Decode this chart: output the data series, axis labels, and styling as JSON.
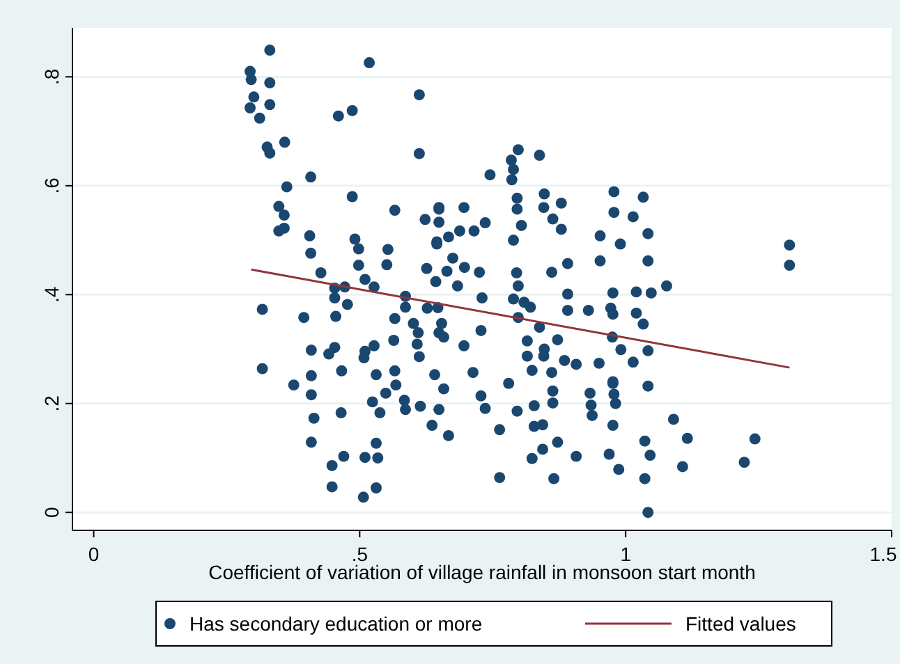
{
  "chart_data": {
    "type": "scatter",
    "xlabel": "Coefficient of variation of village rainfall in monsoon start month",
    "xlim": [
      -0.04,
      1.5
    ],
    "ylim": [
      -0.033,
      0.89
    ],
    "xticks": [
      0,
      {
        "value": 0.5,
        "label": ".5"
      },
      1,
      1.5
    ],
    "yticks": [
      0,
      {
        "value": 0.2,
        "label": ".2"
      },
      {
        "value": 0.4,
        "label": ".4"
      },
      {
        "value": 0.6,
        "label": ".6"
      },
      {
        "value": 0.8,
        "label": ".8"
      }
    ],
    "grid": "y",
    "legend": "bottom",
    "marker": "circle",
    "series": [
      {
        "name": "Has secondary education or more",
        "color": "#1a476f",
        "x": [
          0.331,
          0.294,
          0.296,
          0.331,
          0.301,
          0.294,
          0.331,
          0.312,
          0.518,
          0.612,
          0.46,
          0.486,
          0.326,
          0.359,
          0.331,
          0.612,
          0.408,
          0.363,
          0.486,
          0.348,
          0.358,
          0.348,
          0.358,
          0.566,
          0.406,
          0.408,
          0.491,
          0.498,
          0.553,
          0.551,
          0.498,
          0.427,
          0.51,
          0.527,
          0.453,
          0.472,
          0.453,
          0.477,
          0.317,
          0.395,
          0.455,
          0.586,
          0.586,
          0.566,
          0.601,
          0.61,
          0.608,
          0.612,
          0.564,
          0.409,
          0.453,
          0.442,
          0.51,
          0.527,
          0.508,
          0.317,
          0.409,
          0.409,
          0.376,
          0.466,
          0.531,
          0.566,
          0.568,
          0.549,
          0.524,
          0.538,
          0.584,
          0.586,
          0.614,
          0.414,
          0.465,
          0.409,
          0.47,
          0.448,
          0.51,
          0.534,
          0.531,
          0.448,
          0.531,
          0.507,
          0.636,
          0.649,
          0.641,
          0.649,
          0.645,
          0.626,
          0.643,
          0.649,
          0.623,
          0.798,
          0.785,
          0.789,
          0.786,
          0.838,
          0.745,
          0.796,
          0.796,
          0.847,
          0.846,
          0.879,
          0.863,
          0.879,
          0.804,
          0.789,
          0.978,
          1.033,
          0.978,
          1.014,
          0.952,
          1.042,
          0.99,
          0.952,
          1.042,
          0.649,
          0.696,
          0.649,
          0.736,
          0.715,
          0.688,
          0.645,
          0.667,
          0.675,
          0.664,
          0.697,
          0.725,
          0.684,
          0.795,
          0.798,
          0.789,
          0.809,
          0.821,
          0.798,
          0.861,
          0.891,
          0.891,
          0.891,
          0.93,
          0.73,
          0.627,
          0.647,
          0.976,
          0.972,
          1.02,
          1.048,
          1.077,
          1.02,
          1.033,
          0.975,
          0.991,
          1.042,
          1.014,
          0.95,
          0.654,
          0.658,
          0.696,
          0.728,
          0.838,
          0.815,
          0.815,
          0.847,
          0.872,
          0.846,
          0.885,
          0.907,
          0.824,
          0.861,
          0.658,
          0.713,
          0.78,
          0.728,
          0.736,
          0.863,
          0.863,
          0.933,
          0.935,
          0.937,
          0.976,
          0.978,
          0.981,
          1.042,
          0.828,
          0.796,
          0.828,
          0.844,
          0.667,
          0.763,
          0.976,
          1.036,
          1.046,
          0.987,
          0.969,
          0.872,
          0.844,
          0.824,
          0.907,
          0.763,
          0.865,
          1.036,
          1.042,
          1.308,
          1.308,
          0.976,
          0.976,
          1.09,
          1.116,
          1.107,
          1.243,
          1.223
        ],
        "values": [
          0.849,
          0.81,
          0.795,
          0.789,
          0.763,
          0.743,
          0.749,
          0.724,
          0.826,
          0.767,
          0.728,
          0.738,
          0.671,
          0.68,
          0.66,
          0.659,
          0.616,
          0.598,
          0.58,
          0.562,
          0.546,
          0.517,
          0.522,
          0.555,
          0.508,
          0.476,
          0.502,
          0.484,
          0.483,
          0.455,
          0.454,
          0.44,
          0.428,
          0.414,
          0.412,
          0.414,
          0.394,
          0.382,
          0.373,
          0.358,
          0.36,
          0.397,
          0.377,
          0.356,
          0.347,
          0.33,
          0.309,
          0.286,
          0.316,
          0.298,
          0.303,
          0.291,
          0.296,
          0.306,
          0.284,
          0.264,
          0.251,
          0.216,
          0.234,
          0.26,
          0.253,
          0.26,
          0.234,
          0.219,
          0.203,
          0.183,
          0.206,
          0.189,
          0.195,
          0.173,
          0.183,
          0.129,
          0.103,
          0.086,
          0.101,
          0.1,
          0.127,
          0.047,
          0.045,
          0.028,
          0.16,
          0.189,
          0.253,
          0.33,
          0.497,
          0.448,
          0.424,
          0.557,
          0.538,
          0.666,
          0.647,
          0.63,
          0.611,
          0.656,
          0.62,
          0.577,
          0.557,
          0.585,
          0.56,
          0.568,
          0.539,
          0.52,
          0.527,
          0.5,
          0.589,
          0.579,
          0.551,
          0.543,
          0.508,
          0.512,
          0.493,
          0.462,
          0.462,
          0.56,
          0.56,
          0.533,
          0.532,
          0.517,
          0.517,
          0.493,
          0.506,
          0.467,
          0.443,
          0.45,
          0.441,
          0.416,
          0.44,
          0.416,
          0.392,
          0.386,
          0.377,
          0.358,
          0.441,
          0.457,
          0.401,
          0.371,
          0.371,
          0.394,
          0.375,
          0.376,
          0.403,
          0.375,
          0.405,
          0.403,
          0.416,
          0.366,
          0.346,
          0.322,
          0.299,
          0.297,
          0.276,
          0.274,
          0.347,
          0.322,
          0.306,
          0.334,
          0.34,
          0.315,
          0.287,
          0.3,
          0.317,
          0.287,
          0.279,
          0.272,
          0.261,
          0.257,
          0.227,
          0.257,
          0.237,
          0.214,
          0.191,
          0.223,
          0.201,
          0.219,
          0.197,
          0.178,
          0.237,
          0.217,
          0.2,
          0.232,
          0.196,
          0.186,
          0.158,
          0.161,
          0.141,
          0.152,
          0.16,
          0.131,
          0.105,
          0.079,
          0.107,
          0.129,
          0.116,
          0.099,
          0.103,
          0.064,
          0.062,
          0.062,
          0,
          0.491,
          0.454,
          0.364,
          0.24,
          0.171,
          0.136,
          0.084,
          0.135,
          0.092
        ]
      },
      {
        "name": "Fitted values",
        "type": "line",
        "marker": "none",
        "color": "#90353b",
        "x": [
          0.296,
          1.308
        ],
        "values": [
          0.446,
          0.266
        ]
      }
    ]
  }
}
